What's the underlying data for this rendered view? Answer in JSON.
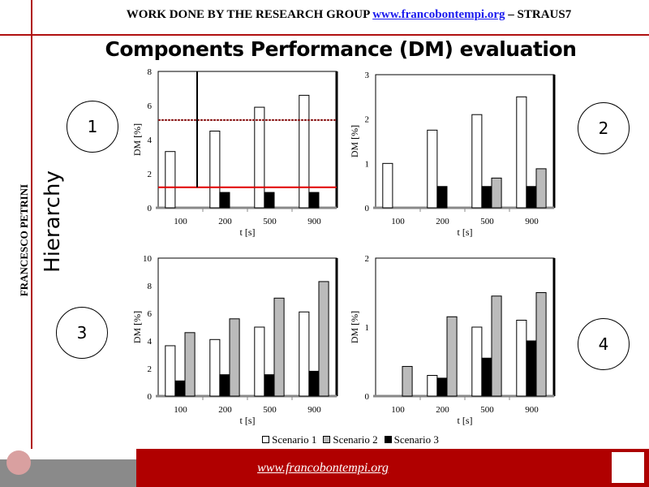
{
  "header": {
    "prefix": "WORK DONE BY THE RESEARCH GROUP",
    "link": "www.francobontempi.org",
    "suffix": "– STRAUS7"
  },
  "title": "Components Performance (DM) evaluation",
  "sidebar": {
    "author": "FRANCESCO PETRINI",
    "section": "Hierarchy"
  },
  "circles": [
    "1",
    "2",
    "3",
    "4"
  ],
  "legend": [
    {
      "label": "Scenario 1",
      "color": "#ffffff"
    },
    {
      "label": "Scenario 2",
      "color": "#bbbbbb"
    },
    {
      "label": "Scenario 3",
      "color": "#000000"
    }
  ],
  "footer": {
    "link": "www.francobontempi.org"
  },
  "chart_data": [
    {
      "type": "bar",
      "categories": [
        "100",
        "200",
        "500",
        "900"
      ],
      "xlabel": "t [s]",
      "ylabel": "DM [%]",
      "ylim": [
        0,
        8
      ],
      "yticks": [
        0,
        2,
        4,
        6,
        8
      ],
      "series": [
        {
          "name": "Scenario 1",
          "values": [
            3.3,
            4.5,
            5.9,
            6.6
          ]
        },
        {
          "name": "Scenario 3",
          "values": [
            0,
            0.9,
            0.9,
            0.9
          ]
        },
        {
          "name": "Scenario 2",
          "values": [
            0,
            0,
            0,
            0
          ]
        }
      ],
      "reference_lines": [
        {
          "value": 5.15,
          "color": "#8b1a1a",
          "style": "dotted"
        },
        {
          "value": 1.2,
          "color": "#e00000",
          "style": "solid"
        }
      ]
    },
    {
      "type": "bar",
      "categories": [
        "100",
        "200",
        "500",
        "900"
      ],
      "xlabel": "t [s]",
      "ylabel": "DM [%]",
      "ylim": [
        0,
        3
      ],
      "yticks": [
        0,
        1,
        2,
        3
      ],
      "series": [
        {
          "name": "Scenario 1",
          "values": [
            1.0,
            1.75,
            2.1,
            2.5
          ]
        },
        {
          "name": "Scenario 3",
          "values": [
            0,
            0.48,
            0.48,
            0.48
          ]
        },
        {
          "name": "Scenario 2",
          "values": [
            0,
            0,
            0.67,
            0.88
          ]
        }
      ]
    },
    {
      "type": "bar",
      "categories": [
        "100",
        "200",
        "500",
        "900"
      ],
      "xlabel": "t [s]",
      "ylabel": "DM [%]",
      "ylim": [
        0,
        10
      ],
      "yticks": [
        0,
        2,
        4,
        6,
        8,
        10
      ],
      "series": [
        {
          "name": "Scenario 1",
          "values": [
            3.65,
            4.1,
            5.0,
            6.1
          ]
        },
        {
          "name": "Scenario 3",
          "values": [
            1.1,
            1.55,
            1.55,
            1.8
          ]
        },
        {
          "name": "Scenario 2",
          "values": [
            4.6,
            5.6,
            7.1,
            8.3
          ]
        }
      ]
    },
    {
      "type": "bar",
      "categories": [
        "100",
        "200",
        "500",
        "900"
      ],
      "xlabel": "t [s]",
      "ylabel": "DM [%]",
      "ylim": [
        0,
        2
      ],
      "yticks": [
        0,
        1,
        2
      ],
      "series": [
        {
          "name": "Scenario 1",
          "values": [
            0,
            0.3,
            1.0,
            1.1
          ]
        },
        {
          "name": "Scenario 3",
          "values": [
            0,
            0.26,
            0.55,
            0.8
          ]
        },
        {
          "name": "Scenario 2",
          "values": [
            0.43,
            1.15,
            1.45,
            1.5
          ]
        }
      ]
    }
  ]
}
